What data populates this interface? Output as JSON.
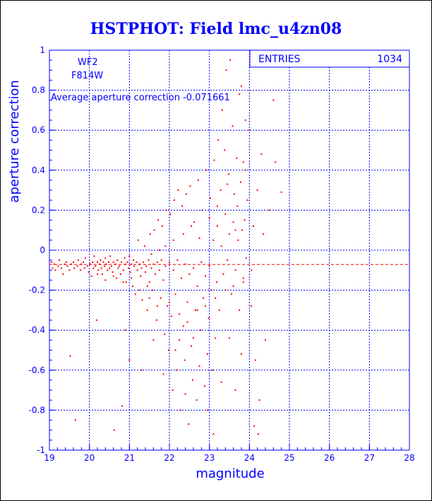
{
  "chart_data": {
    "type": "scatter",
    "title": "HSTPHOT: Field lmc_u4zn08",
    "xlabel": "magnitude",
    "ylabel": "aperture correction",
    "xlim": [
      19,
      28
    ],
    "ylim": [
      -1,
      1
    ],
    "x_ticks": [
      19,
      20,
      21,
      22,
      23,
      24,
      25,
      26,
      27,
      28
    ],
    "y_ticks": [
      -1,
      -0.8,
      -0.6,
      -0.4,
      -0.2,
      0,
      0.2,
      0.4,
      0.6,
      0.8,
      1
    ],
    "grid": true,
    "stats_box": {
      "label": "ENTRIES",
      "value": "1034"
    },
    "annotations": {
      "camera": "WF2",
      "filter": "F814W",
      "average_text": "Average aperture correction -0.071661"
    },
    "average_line": -0.071661,
    "marker_color": "#ff0000",
    "axis_color": "#0000ff",
    "grid_color": "#0000ff",
    "entries": 1034,
    "points": [
      [
        19.05,
        -0.06
      ],
      [
        19.08,
        -0.09
      ],
      [
        19.12,
        -0.07
      ],
      [
        19.15,
        -0.1
      ],
      [
        19.22,
        -0.08
      ],
      [
        19.25,
        -0.05
      ],
      [
        19.3,
        -0.09
      ],
      [
        19.34,
        -0.12
      ],
      [
        19.38,
        -0.07
      ],
      [
        19.42,
        -0.06
      ],
      [
        19.45,
        -0.08
      ],
      [
        19.5,
        -0.1
      ],
      [
        19.52,
        -0.53
      ],
      [
        19.55,
        -0.07
      ],
      [
        19.6,
        -0.06
      ],
      [
        19.62,
        -0.09
      ],
      [
        19.65,
        -0.85
      ],
      [
        19.7,
        -0.08
      ],
      [
        19.72,
        -0.05
      ],
      [
        19.78,
        -0.1
      ],
      [
        19.8,
        -0.07
      ],
      [
        19.85,
        -0.06
      ],
      [
        19.88,
        -0.09
      ],
      [
        19.9,
        -0.04
      ],
      [
        19.95,
        -0.08
      ],
      [
        19.98,
        -0.11
      ],
      [
        20.02,
        -0.07
      ],
      [
        20.05,
        -0.13
      ],
      [
        20.08,
        -0.06
      ],
      [
        20.1,
        -0.09
      ],
      [
        20.12,
        -0.03
      ],
      [
        20.15,
        -0.08
      ],
      [
        20.18,
        -0.35
      ],
      [
        20.2,
        -0.06
      ],
      [
        20.22,
        -0.1
      ],
      [
        20.25,
        -0.07
      ],
      [
        20.28,
        -0.05
      ],
      [
        20.3,
        -0.09
      ],
      [
        20.32,
        -0.12
      ],
      [
        20.35,
        -0.06
      ],
      [
        20.38,
        -0.08
      ],
      [
        20.4,
        -0.04
      ],
      [
        20.42,
        -0.07
      ],
      [
        20.45,
        -0.1
      ],
      [
        20.48,
        -0.06
      ],
      [
        20.5,
        -0.09
      ],
      [
        20.52,
        -0.03
      ],
      [
        20.55,
        -0.08
      ],
      [
        20.58,
        -0.11
      ],
      [
        20.6,
        -0.06
      ],
      [
        20.62,
        -0.9
      ],
      [
        20.65,
        -0.07
      ],
      [
        20.68,
        -0.14
      ],
      [
        20.7,
        -0.05
      ],
      [
        20.72,
        -0.09
      ],
      [
        20.75,
        -0.08
      ],
      [
        20.78,
        -0.12
      ],
      [
        20.8,
        -0.06
      ],
      [
        20.82,
        -0.78
      ],
      [
        20.85,
        -0.1
      ],
      [
        20.88,
        -0.04
      ],
      [
        20.9,
        -0.07
      ],
      [
        20.92,
        -0.16
      ],
      [
        20.95,
        -0.06
      ],
      [
        20.98,
        -0.09
      ],
      [
        21.0,
        -0.03
      ],
      [
        21.02,
        -0.11
      ],
      [
        21.05,
        -0.07
      ],
      [
        21.08,
        -0.18
      ],
      [
        21.1,
        -0.05
      ],
      [
        21.12,
        -0.08
      ],
      [
        21.15,
        -0.22
      ],
      [
        21.18,
        -0.06
      ],
      [
        21.2,
        -0.1
      ],
      [
        21.22,
        0.05
      ],
      [
        21.25,
        -0.07
      ],
      [
        21.28,
        -0.13
      ],
      [
        21.3,
        -0.09
      ],
      [
        21.32,
        -0.25
      ],
      [
        21.35,
        -0.06
      ],
      [
        21.38,
        0.02
      ],
      [
        21.4,
        -0.11
      ],
      [
        21.42,
        -0.08
      ],
      [
        21.45,
        -0.3
      ],
      [
        21.48,
        -0.05
      ],
      [
        21.5,
        -0.16
      ],
      [
        21.52,
        0.08
      ],
      [
        21.55,
        -0.09
      ],
      [
        21.58,
        -0.2
      ],
      [
        21.6,
        -0.07
      ],
      [
        21.62,
        0.1
      ],
      [
        21.65,
        -0.12
      ],
      [
        21.68,
        -0.35
      ],
      [
        21.7,
        -0.06
      ],
      [
        21.72,
        0.15
      ],
      [
        21.75,
        -0.1
      ],
      [
        21.78,
        -0.24
      ],
      [
        21.8,
        -0.05
      ],
      [
        21.82,
        0.12
      ],
      [
        21.85,
        -0.15
      ],
      [
        21.88,
        -0.42
      ],
      [
        21.9,
        -0.08
      ],
      [
        21.92,
        0.2
      ],
      [
        21.95,
        -0.28
      ],
      [
        21.98,
        -0.5
      ],
      [
        22.0,
        -0.06
      ],
      [
        22.02,
        0.18
      ],
      [
        22.05,
        -0.33
      ],
      [
        22.08,
        -0.7
      ],
      [
        22.1,
        -0.1
      ],
      [
        22.12,
        0.25
      ],
      [
        22.15,
        -0.22
      ],
      [
        22.18,
        -0.6
      ],
      [
        22.2,
        -0.05
      ],
      [
        22.22,
        0.3
      ],
      [
        22.25,
        -0.45
      ],
      [
        22.28,
        -0.8
      ],
      [
        22.3,
        -0.14
      ],
      [
        22.32,
        0.22
      ],
      [
        22.35,
        -0.38
      ],
      [
        22.38,
        -0.55
      ],
      [
        22.4,
        -0.07
      ],
      [
        22.42,
        0.28
      ],
      [
        22.45,
        -0.26
      ],
      [
        22.48,
        -0.87
      ],
      [
        22.5,
        -0.12
      ],
      [
        22.52,
        0.32
      ],
      [
        22.55,
        -0.48
      ],
      [
        22.58,
        -0.65
      ],
      [
        22.6,
        -0.09
      ],
      [
        22.62,
        0.14
      ],
      [
        22.65,
        -0.3
      ],
      [
        22.68,
        -0.75
      ],
      [
        22.7,
        -0.18
      ],
      [
        22.72,
        0.35
      ],
      [
        22.75,
        -0.58
      ],
      [
        22.78,
        -0.4
      ],
      [
        22.8,
        -0.06
      ],
      [
        22.82,
        0.2
      ],
      [
        22.85,
        -0.24
      ],
      [
        22.88,
        -0.68
      ],
      [
        22.9,
        -0.13
      ],
      [
        22.92,
        0.4
      ],
      [
        22.95,
        -0.52
      ],
      [
        22.98,
        -0.34
      ],
      [
        23.0,
        -0.08
      ],
      [
        23.02,
        0.26
      ],
      [
        23.05,
        -0.2
      ],
      [
        23.08,
        -0.6
      ],
      [
        23.1,
        0.05
      ],
      [
        23.12,
        0.45
      ],
      [
        23.15,
        -0.44
      ],
      [
        23.18,
        -0.16
      ],
      [
        23.2,
        0.12
      ],
      [
        23.22,
        0.55
      ],
      [
        23.25,
        -0.3
      ],
      [
        23.28,
        0.3
      ],
      [
        23.3,
        0.02
      ],
      [
        23.32,
        0.7
      ],
      [
        23.35,
        -0.12
      ],
      [
        23.38,
        0.5
      ],
      [
        23.4,
        0.18
      ],
      [
        23.42,
        0.9
      ],
      [
        23.45,
        -0.05
      ],
      [
        23.48,
        0.38
      ],
      [
        23.5,
        0.08
      ],
      [
        23.52,
        0.95
      ],
      [
        23.55,
        -0.22
      ],
      [
        23.58,
        0.62
      ],
      [
        23.6,
        0.14
      ],
      [
        23.62,
        0.28
      ],
      [
        23.65,
        -0.1
      ],
      [
        23.68,
        0.46
      ],
      [
        23.7,
        0.22
      ],
      [
        23.72,
        0.05
      ],
      [
        23.75,
        -0.3
      ],
      [
        23.78,
        0.34
      ],
      [
        23.8,
        0.82
      ],
      [
        23.82,
        0.1
      ],
      [
        23.85,
        -0.16
      ],
      [
        23.88,
        0.15
      ],
      [
        23.9,
        0.4
      ],
      [
        23.92,
        -0.04
      ],
      [
        23.95,
        0.25
      ],
      [
        24.0,
        0.6
      ],
      [
        24.05,
        -0.28
      ],
      [
        24.1,
        0.12
      ],
      [
        24.15,
        -0.55
      ],
      [
        24.2,
        0.3
      ],
      [
        24.22,
        -0.92
      ],
      [
        24.3,
        0.48
      ],
      [
        24.35,
        0.08
      ],
      [
        24.4,
        -0.45
      ],
      [
        24.5,
        0.2
      ],
      [
        24.6,
        0.75
      ],
      [
        24.65,
        0.44
      ],
      [
        24.8,
        0.29
      ],
      [
        24.25,
        -0.75
      ],
      [
        24.12,
        -0.88
      ],
      [
        23.9,
        0.65
      ],
      [
        23.75,
        0.78
      ],
      [
        21.0,
        -0.55
      ],
      [
        20.9,
        -0.4
      ],
      [
        21.3,
        -0.6
      ],
      [
        21.45,
        -0.18
      ],
      [
        21.6,
        -0.45
      ],
      [
        21.85,
        -0.62
      ],
      [
        22.15,
        -0.5
      ],
      [
        22.4,
        -0.72
      ],
      [
        22.6,
        -0.44
      ],
      [
        22.95,
        -0.8
      ],
      [
        23.1,
        -0.92
      ],
      [
        23.3,
        -0.66
      ],
      [
        23.5,
        -0.44
      ],
      [
        23.65,
        -0.7
      ],
      [
        23.8,
        -0.52
      ],
      [
        22.1,
        0.05
      ],
      [
        21.9,
        0.02
      ],
      [
        21.75,
        0.0
      ],
      [
        21.55,
        -0.02
      ],
      [
        22.35,
        0.08
      ],
      [
        22.55,
        0.12
      ],
      [
        22.75,
        0.06
      ],
      [
        23.0,
        0.16
      ],
      [
        23.2,
        0.22
      ],
      [
        23.45,
        0.33
      ],
      [
        23.65,
        0.1
      ],
      [
        23.85,
        0.44
      ],
      [
        20.2,
        -0.12
      ],
      [
        20.4,
        -0.15
      ],
      [
        20.6,
        -0.13
      ],
      [
        20.85,
        -0.16
      ],
      [
        21.05,
        -0.14
      ],
      [
        21.25,
        -0.2
      ],
      [
        21.5,
        -0.24
      ],
      [
        21.7,
        -0.28
      ],
      [
        22.0,
        -0.26
      ],
      [
        22.25,
        -0.32
      ],
      [
        22.45,
        -0.36
      ],
      [
        22.7,
        -0.3
      ],
      [
        22.9,
        -0.28
      ],
      [
        23.15,
        -0.24
      ],
      [
        23.4,
        -0.2
      ],
      [
        23.6,
        -0.18
      ],
      [
        23.85,
        -0.14
      ],
      [
        24.05,
        -0.1
      ]
    ]
  }
}
